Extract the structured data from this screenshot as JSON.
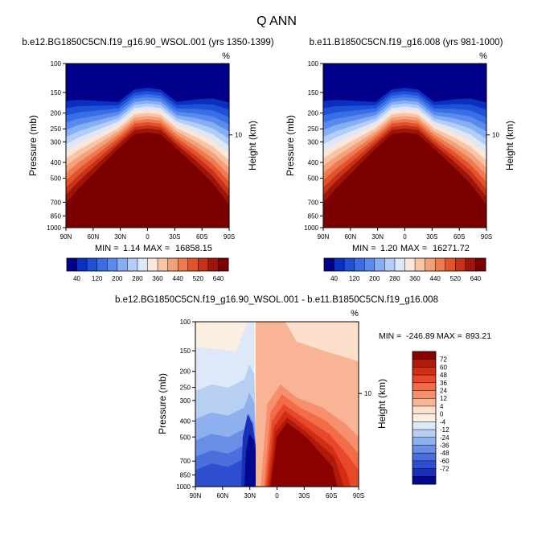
{
  "main_title": "Q ANN",
  "chart_data": [
    {
      "type": "heatmap",
      "id": "top-left",
      "title": "b.e12.BG1850C5CN.f19_g16.90_WSOL.001 (yrs 1350-1399)",
      "units": "%",
      "ylabel": "Pressure (mb)",
      "ylabel_right": "Height (km)",
      "x_ticks": [
        "90N",
        "60N",
        "30N",
        "0",
        "30S",
        "60S",
        "90S"
      ],
      "y_ticks": [
        100,
        150,
        200,
        250,
        300,
        400,
        500,
        700,
        850,
        1000
      ],
      "right_ticks": [
        "10"
      ],
      "stats": {
        "min_label": "MIN =",
        "min": "1.14",
        "max_label": "MAX =",
        "max": "16858.15"
      },
      "colorbar": {
        "labels": [
          "40",
          "120",
          "200",
          "280",
          "360",
          "440",
          "520",
          "640"
        ],
        "colors": [
          "#00008b",
          "#0a30c0",
          "#1e50d8",
          "#3a6ee6",
          "#5a8aee",
          "#86aef3",
          "#b4cdf6",
          "#dde7f8",
          "#fbe6d8",
          "#f8c4a6",
          "#f4a079",
          "#ee7a4f",
          "#e2532c",
          "#c9321a",
          "#9e1508",
          "#7d0000"
        ]
      },
      "field": "absolute"
    },
    {
      "type": "heatmap",
      "id": "top-right",
      "title": "b.e11.B1850C5CN.f19_g16.008 (yrs 981-1000)",
      "units": "%",
      "ylabel": "Pressure (mb)",
      "ylabel_right": "Height (km)",
      "x_ticks": [
        "90N",
        "60N",
        "30N",
        "0",
        "30S",
        "60S",
        "90S"
      ],
      "y_ticks": [
        100,
        150,
        200,
        250,
        300,
        400,
        500,
        700,
        850,
        1000
      ],
      "right_ticks": [
        "10"
      ],
      "stats": {
        "min_label": "MIN =",
        "min": "1.20",
        "max_label": "MAX =",
        "max": "16271.72"
      },
      "colorbar": {
        "labels": [
          "40",
          "120",
          "200",
          "280",
          "360",
          "440",
          "520",
          "640"
        ],
        "colors": [
          "#00008b",
          "#0a30c0",
          "#1e50d8",
          "#3a6ee6",
          "#5a8aee",
          "#86aef3",
          "#b4cdf6",
          "#dde7f8",
          "#fbe6d8",
          "#f8c4a6",
          "#f4a079",
          "#ee7a4f",
          "#e2532c",
          "#c9321a",
          "#9e1508",
          "#7d0000"
        ]
      },
      "field": "absolute"
    },
    {
      "type": "heatmap",
      "id": "bottom-diff",
      "title": "b.e12.BG1850C5CN.f19_g16.90_WSOL.001 - b.e11.B1850C5CN.f19_g16.008",
      "units": "%",
      "ylabel": "Pressure (mb)",
      "ylabel_right": "Height (km)",
      "x_ticks": [
        "90N",
        "60N",
        "30N",
        "0",
        "30S",
        "60S",
        "90S"
      ],
      "y_ticks": [
        100,
        150,
        200,
        250,
        300,
        400,
        500,
        700,
        850,
        1000
      ],
      "right_ticks": [
        "10"
      ],
      "stats": {
        "min_label": "MIN =",
        "min": "-246.89",
        "max_label": "MAX =",
        "max": "893.21"
      },
      "colorbar": {
        "labels": [
          "72",
          "60",
          "48",
          "36",
          "24",
          "12",
          "4",
          "0",
          "-4",
          "-12",
          "-24",
          "-36",
          "-48",
          "-60",
          "-72"
        ],
        "colors": [
          "#8b0000",
          "#b01a0a",
          "#d22c12",
          "#e8482a",
          "#f26c48",
          "#f6906c",
          "#f9b496",
          "#fce0cc",
          "#fdeee2",
          "#dde9f8",
          "#b8cff4",
          "#8fb0ee",
          "#6a8ee6",
          "#4a6edc",
          "#2e4ed0",
          "#1a30b8",
          "#000890"
        ]
      },
      "field": "difference"
    }
  ]
}
